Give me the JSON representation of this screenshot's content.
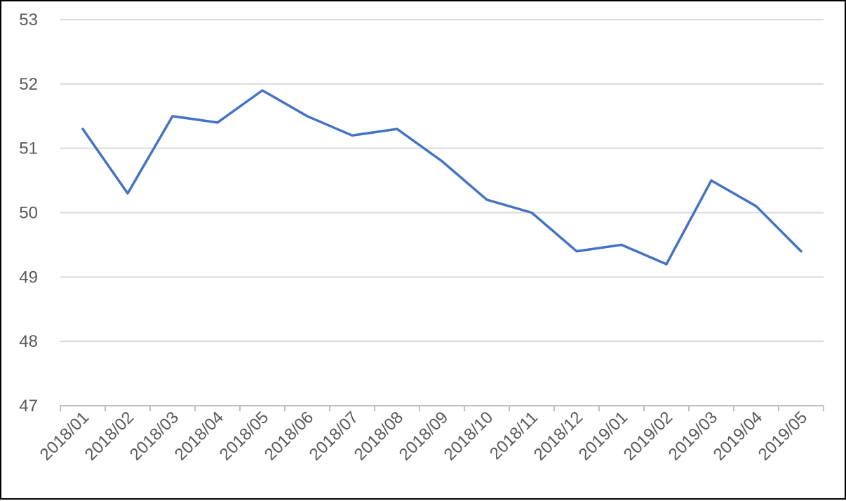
{
  "chart_data": {
    "type": "line",
    "title": "",
    "xlabel": "",
    "ylabel": "",
    "categories": [
      "2018/01",
      "2018/02",
      "2018/03",
      "2018/04",
      "2018/05",
      "2018/06",
      "2018/07",
      "2018/08",
      "2018/09",
      "2018/10",
      "2018/11",
      "2018/12",
      "2019/01",
      "2019/02",
      "2019/03",
      "2019/04",
      "2019/05"
    ],
    "series": [
      {
        "values": [
          51.3,
          50.3,
          51.5,
          51.4,
          51.9,
          51.5,
          51.2,
          51.3,
          50.8,
          50.2,
          50.0,
          49.4,
          49.5,
          49.2,
          50.5,
          50.1,
          49.4
        ],
        "color": "#4472c4"
      }
    ],
    "ylim": [
      47,
      53
    ],
    "yticks": [
      47,
      48,
      49,
      50,
      51,
      52,
      53
    ],
    "grid": true,
    "legend": "none",
    "colors": {
      "line": "#4472c4",
      "grid": "#d9d9d9",
      "axis": "#bfbfbf",
      "text": "#595959",
      "frame": "#000000"
    }
  }
}
